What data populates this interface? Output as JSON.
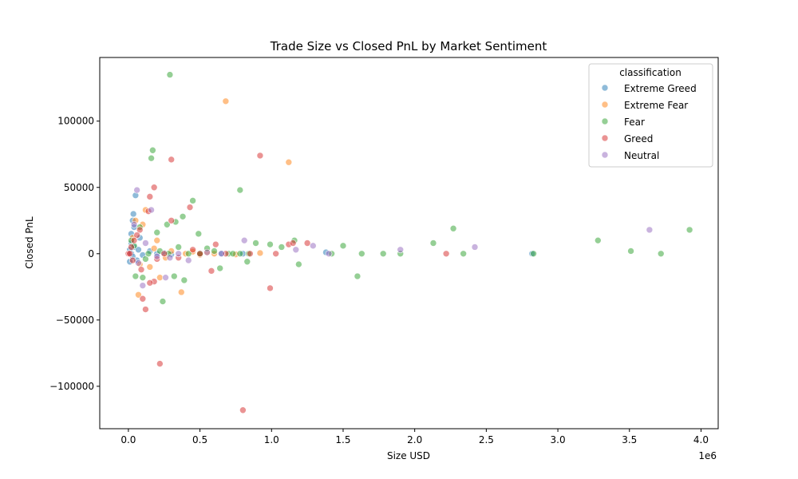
{
  "chart_data": {
    "type": "scatter",
    "title": "Trade Size vs Closed PnL by Market Sentiment",
    "xlabel": "Size USD",
    "ylabel": "Closed PnL",
    "x_scale_label": "1e6",
    "xlim": [
      -0.2,
      4.12
    ],
    "ylim": [
      -132000,
      148000
    ],
    "x_ticks": [
      0.0,
      0.5,
      1.0,
      1.5,
      2.0,
      2.5,
      3.0,
      3.5,
      4.0
    ],
    "x_tick_labels": [
      "0.0",
      "0.5",
      "1.0",
      "1.5",
      "2.0",
      "2.5",
      "3.0",
      "3.5",
      "4.0"
    ],
    "y_ticks": [
      -100000,
      -50000,
      0,
      50000,
      100000
    ],
    "y_tick_labels": [
      "−100000",
      "−50000",
      "0",
      "50000",
      "100000"
    ],
    "grid": false,
    "legend": {
      "title": "classification",
      "position": "top-right"
    },
    "series": [
      {
        "name": "Extreme Greed",
        "color": "#1f77b4",
        "points": [
          [
            0.01,
            -6000
          ],
          [
            0.02,
            8000
          ],
          [
            0.03,
            25000
          ],
          [
            0.035,
            30000
          ],
          [
            0.04,
            20000
          ],
          [
            0.05,
            44000
          ],
          [
            0.02,
            0
          ],
          [
            0.04,
            5000
          ],
          [
            0.06,
            -5000
          ],
          [
            0.08,
            12000
          ],
          [
            0.03,
            -2000
          ],
          [
            0.07,
            3000
          ],
          [
            0.1,
            -1000
          ],
          [
            0.15,
            2000
          ],
          [
            0.2,
            0
          ],
          [
            0.25,
            500
          ],
          [
            0.3,
            -500
          ],
          [
            0.5,
            0
          ],
          [
            0.65,
            200
          ],
          [
            0.8,
            0
          ],
          [
            1.38,
            1000
          ],
          [
            2.82,
            0
          ],
          [
            0.02,
            15000
          ],
          [
            0.01,
            3000
          ]
        ]
      },
      {
        "name": "Extreme Fear",
        "color": "#ff7f0e",
        "points": [
          [
            0.68,
            115000
          ],
          [
            1.12,
            69000
          ],
          [
            0.07,
            -31000
          ],
          [
            0.37,
            -29000
          ],
          [
            0.22,
            -18000
          ],
          [
            0.12,
            33000
          ],
          [
            0.05,
            25000
          ],
          [
            0.1,
            22000
          ],
          [
            0.15,
            -10000
          ],
          [
            0.2,
            10000
          ],
          [
            0.3,
            2000
          ],
          [
            0.4,
            0
          ],
          [
            0.55,
            1000
          ],
          [
            0.6,
            0
          ],
          [
            0.75,
            -500
          ],
          [
            0.92,
            500
          ],
          [
            0.08,
            -8000
          ],
          [
            0.03,
            12000
          ],
          [
            0.26,
            -3000
          ],
          [
            0.45,
            1500
          ],
          [
            0.18,
            4000
          ],
          [
            0.5,
            -800
          ]
        ]
      },
      {
        "name": "Fear",
        "color": "#2ca02c",
        "points": [
          [
            0.29,
            135000
          ],
          [
            0.17,
            78000
          ],
          [
            0.16,
            72000
          ],
          [
            0.78,
            48000
          ],
          [
            0.45,
            40000
          ],
          [
            0.38,
            28000
          ],
          [
            0.33,
            24000
          ],
          [
            0.27,
            22000
          ],
          [
            0.2,
            16000
          ],
          [
            0.49,
            15000
          ],
          [
            0.1,
            -18000
          ],
          [
            0.39,
            -20000
          ],
          [
            0.24,
            -36000
          ],
          [
            0.32,
            -17000
          ],
          [
            0.64,
            -11000
          ],
          [
            0.83,
            -6000
          ],
          [
            1.6,
            -17000
          ],
          [
            1.19,
            -8000
          ],
          [
            3.92,
            18000
          ],
          [
            3.28,
            10000
          ],
          [
            3.51,
            2000
          ],
          [
            3.72,
            0
          ],
          [
            2.27,
            19000
          ],
          [
            2.13,
            8000
          ],
          [
            2.34,
            0
          ],
          [
            1.9,
            0
          ],
          [
            1.78,
            0
          ],
          [
            1.63,
            0
          ],
          [
            1.5,
            6000
          ],
          [
            1.42,
            0
          ],
          [
            1.16,
            10000
          ],
          [
            1.07,
            5000
          ],
          [
            0.99,
            7000
          ],
          [
            0.89,
            8000
          ],
          [
            0.7,
            0
          ],
          [
            0.6,
            2000
          ],
          [
            0.55,
            4000
          ],
          [
            0.05,
            -17000
          ],
          [
            0.02,
            10000
          ],
          [
            0.04,
            6000
          ],
          [
            0.08,
            20000
          ],
          [
            0.12,
            -4000
          ],
          [
            0.14,
            0
          ],
          [
            0.22,
            2000
          ],
          [
            0.28,
            0
          ],
          [
            0.35,
            5000
          ],
          [
            0.42,
            0
          ],
          [
            0.5,
            0
          ],
          [
            0.73,
            0
          ],
          [
            0.78,
            0
          ],
          [
            0.84,
            0
          ],
          [
            2.83,
            0
          ]
        ]
      },
      {
        "name": "Greed",
        "color": "#d62728",
        "points": [
          [
            0.8,
            -118000
          ],
          [
            0.22,
            -83000
          ],
          [
            0.92,
            74000
          ],
          [
            0.3,
            71000
          ],
          [
            0.18,
            50000
          ],
          [
            0.15,
            43000
          ],
          [
            0.43,
            35000
          ],
          [
            0.14,
            32000
          ],
          [
            0.3,
            25000
          ],
          [
            0.12,
            -42000
          ],
          [
            0.1,
            -34000
          ],
          [
            0.18,
            -21000
          ],
          [
            0.15,
            -22000
          ],
          [
            0.99,
            -26000
          ],
          [
            0.58,
            -13000
          ],
          [
            1.25,
            8000
          ],
          [
            1.12,
            7000
          ],
          [
            1.15,
            8000
          ],
          [
            2.22,
            0
          ],
          [
            1.03,
            0
          ],
          [
            0.61,
            7000
          ],
          [
            0.08,
            18000
          ],
          [
            0.06,
            14000
          ],
          [
            0.04,
            10000
          ],
          [
            0.03,
            -5000
          ],
          [
            0.09,
            -12000
          ],
          [
            0.0,
            0
          ],
          [
            0.01,
            0
          ],
          [
            0.02,
            5000
          ],
          [
            0.25,
            0
          ],
          [
            0.35,
            -3000
          ],
          [
            0.5,
            0
          ],
          [
            0.68,
            0
          ],
          [
            0.85,
            0
          ],
          [
            0.2,
            -4000
          ],
          [
            0.45,
            3000
          ]
        ]
      },
      {
        "name": "Neutral",
        "color": "#9467bd",
        "points": [
          [
            0.06,
            48000
          ],
          [
            0.16,
            33000
          ],
          [
            3.64,
            18000
          ],
          [
            2.42,
            5000
          ],
          [
            1.9,
            3000
          ],
          [
            1.29,
            6000
          ],
          [
            1.17,
            3000
          ],
          [
            0.81,
            10000
          ],
          [
            0.1,
            -24000
          ],
          [
            0.26,
            -18000
          ],
          [
            0.42,
            -5000
          ],
          [
            0.29,
            -3000
          ],
          [
            0.04,
            22000
          ],
          [
            0.07,
            -7000
          ],
          [
            0.12,
            8000
          ],
          [
            0.2,
            -2000
          ],
          [
            0.35,
            0
          ],
          [
            0.55,
            1000
          ],
          [
            0.65,
            0
          ],
          [
            1.4,
            0
          ]
        ]
      }
    ]
  }
}
